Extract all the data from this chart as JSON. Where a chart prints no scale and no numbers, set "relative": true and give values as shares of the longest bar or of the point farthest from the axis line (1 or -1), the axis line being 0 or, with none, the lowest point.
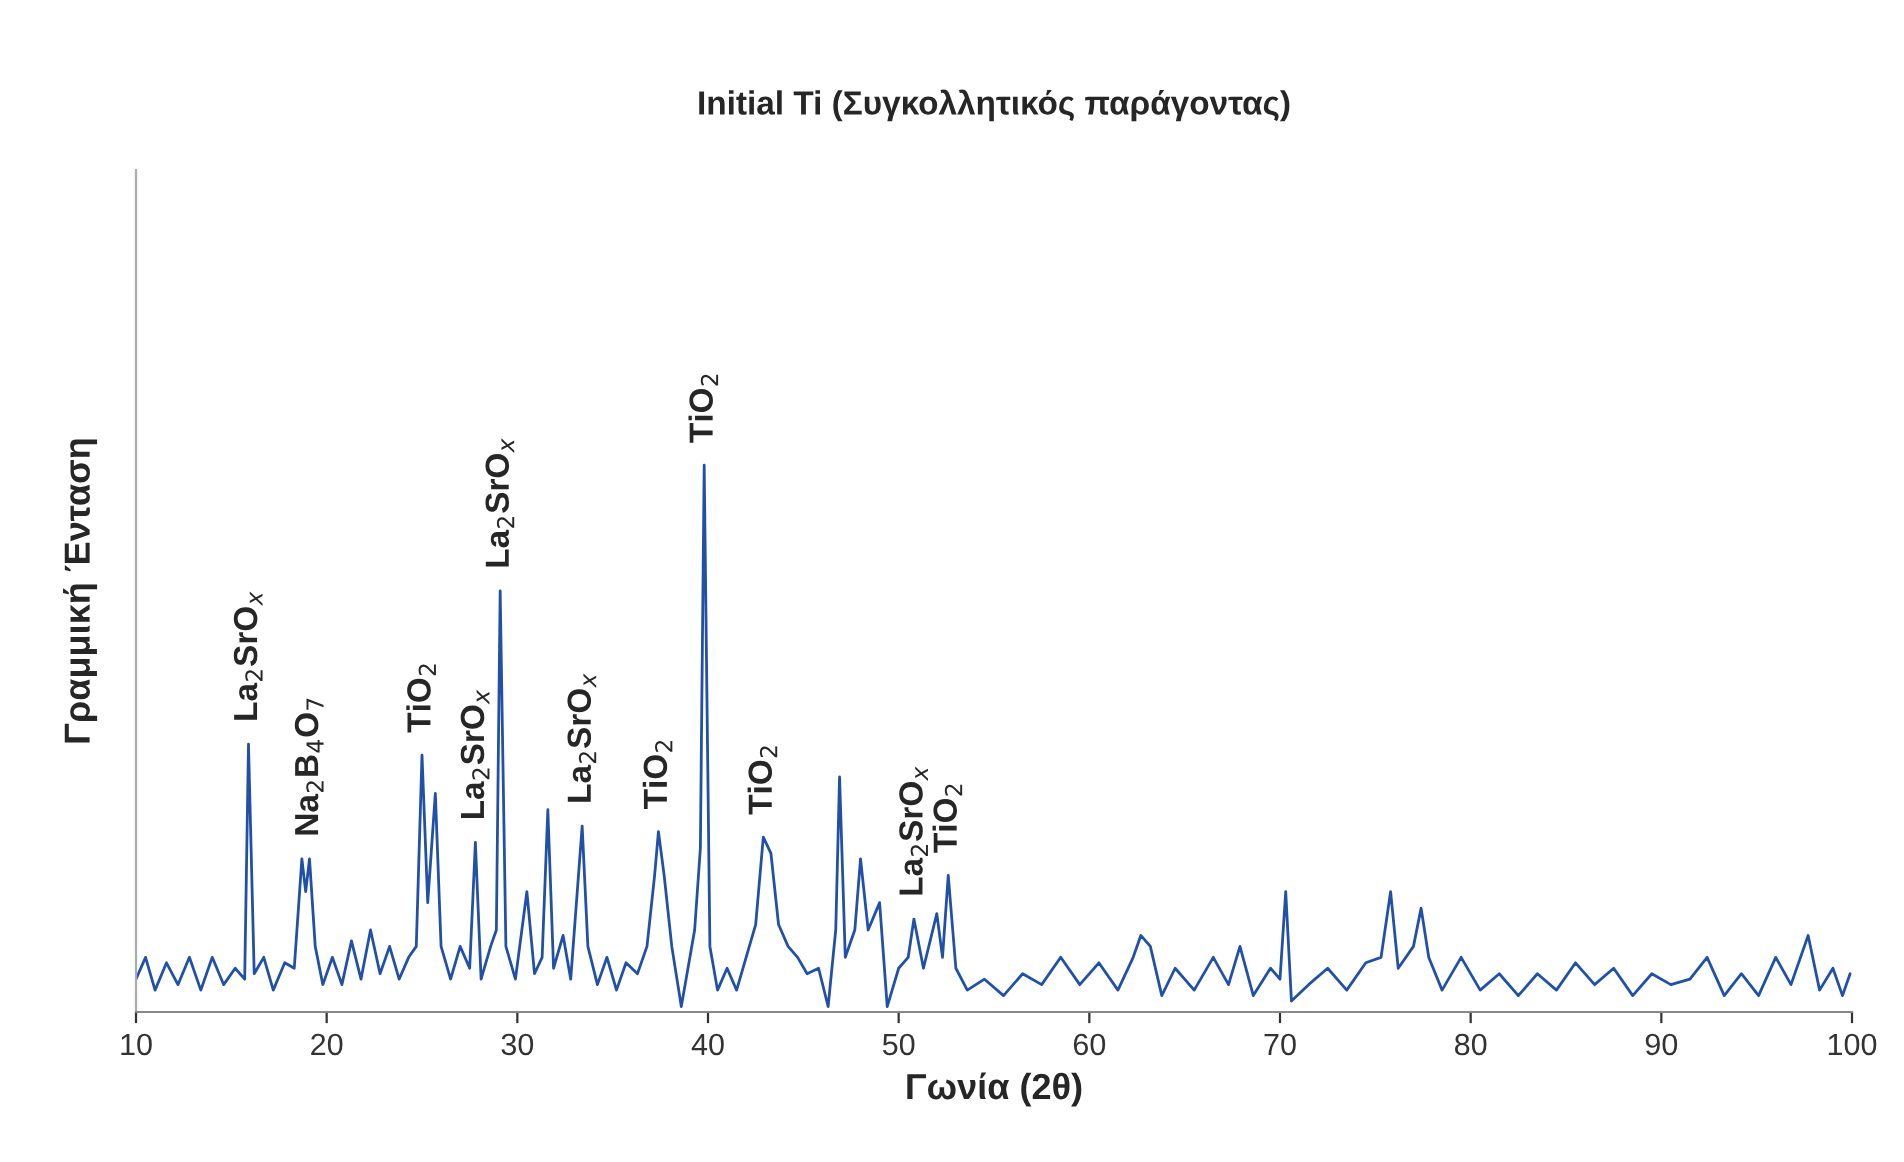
{
  "chart_data": {
    "type": "line",
    "title": "Initial Ti (Συγκολλητικός παράγοντας)",
    "xlabel": "Γωνία (2θ)",
    "ylabel": "Γραμμική Ένταση",
    "relative": true,
    "grid": false,
    "xlim": [
      10,
      100
    ],
    "xticks": [
      10,
      20,
      30,
      40,
      50,
      60,
      70,
      80,
      90,
      100
    ],
    "series": [
      {
        "color": "#2150a8",
        "x": [
          10,
          10.5,
          11,
          11.6,
          12.2,
          12.8,
          13.4,
          14,
          14.6,
          15.2,
          15.7,
          15.9,
          16.2,
          16.7,
          17.2,
          17.8,
          18.3,
          18.7,
          18.9,
          19.1,
          19.4,
          19.8,
          20.3,
          20.8,
          21.3,
          21.8,
          22.3,
          22.8,
          23.3,
          23.8,
          24.3,
          24.7,
          25.0,
          25.3,
          25.7,
          26.0,
          26.5,
          27.0,
          27.5,
          27.8,
          28.1,
          28.6,
          28.9,
          29.1,
          29.4,
          29.9,
          30.5,
          30.9,
          31.3,
          31.6,
          31.9,
          32.4,
          32.8,
          33.4,
          33.7,
          34.2,
          34.7,
          35.2,
          35.7,
          36.3,
          36.8,
          37.2,
          37.4,
          37.7,
          38.1,
          38.6,
          39.3,
          39.6,
          39.8,
          40.1,
          40.5,
          41.0,
          41.5,
          42.0,
          42.5,
          42.9,
          43.3,
          43.7,
          44.2,
          44.7,
          45.2,
          45.8,
          46.3,
          46.7,
          46.9,
          47.2,
          47.7,
          48.0,
          48.4,
          49.0,
          49.4,
          50.0,
          50.5,
          50.8,
          51.3,
          52.0,
          52.3,
          52.6,
          53.0,
          53.6,
          54.5,
          55.5,
          56.5,
          57.5,
          58.5,
          59.5,
          60.5,
          61.5,
          62.3,
          62.7,
          63.2,
          63.8,
          64.5,
          65.5,
          66.5,
          67.3,
          67.9,
          68.6,
          69.5,
          70.0,
          70.3,
          70.6,
          71.5,
          72.5,
          73.5,
          74.5,
          75.3,
          75.8,
          76.2,
          77.0,
          77.4,
          77.8,
          78.5,
          79.5,
          80.5,
          81.5,
          82.5,
          83.5,
          84.5,
          85.5,
          86.5,
          87.5,
          88.5,
          89.5,
          90.5,
          91.5,
          92.4,
          93.3,
          94.2,
          95.1,
          96.0,
          96.8,
          97.7,
          98.3,
          99.0,
          99.5,
          99.9
        ],
        "values": [
          0.06,
          0.1,
          0.04,
          0.09,
          0.05,
          0.1,
          0.04,
          0.1,
          0.05,
          0.08,
          0.06,
          0.49,
          0.07,
          0.1,
          0.04,
          0.09,
          0.08,
          0.28,
          0.22,
          0.28,
          0.12,
          0.05,
          0.1,
          0.05,
          0.13,
          0.06,
          0.15,
          0.07,
          0.12,
          0.06,
          0.1,
          0.12,
          0.47,
          0.2,
          0.4,
          0.12,
          0.06,
          0.12,
          0.08,
          0.31,
          0.06,
          0.12,
          0.15,
          0.77,
          0.12,
          0.06,
          0.22,
          0.07,
          0.1,
          0.37,
          0.08,
          0.14,
          0.06,
          0.34,
          0.12,
          0.05,
          0.1,
          0.04,
          0.09,
          0.07,
          0.12,
          0.25,
          0.33,
          0.25,
          0.12,
          0.01,
          0.15,
          0.3,
          1.0,
          0.12,
          0.04,
          0.08,
          0.04,
          0.1,
          0.16,
          0.32,
          0.29,
          0.16,
          0.12,
          0.1,
          0.07,
          0.08,
          0.01,
          0.15,
          0.43,
          0.1,
          0.15,
          0.28,
          0.15,
          0.2,
          0.01,
          0.08,
          0.1,
          0.17,
          0.08,
          0.18,
          0.1,
          0.25,
          0.08,
          0.04,
          0.06,
          0.03,
          0.07,
          0.05,
          0.1,
          0.05,
          0.09,
          0.04,
          0.1,
          0.14,
          0.12,
          0.03,
          0.08,
          0.04,
          0.1,
          0.05,
          0.12,
          0.03,
          0.08,
          0.06,
          0.22,
          0.02,
          0.05,
          0.08,
          0.04,
          0.09,
          0.1,
          0.22,
          0.08,
          0.12,
          0.19,
          0.1,
          0.04,
          0.1,
          0.04,
          0.07,
          0.03,
          0.07,
          0.04,
          0.09,
          0.05,
          0.08,
          0.03,
          0.07,
          0.05,
          0.06,
          0.1,
          0.03,
          0.07,
          0.03,
          0.1,
          0.05,
          0.14,
          0.04,
          0.08,
          0.03,
          0.07
        ]
      }
    ],
    "annotations": [
      {
        "text": "La$_{2}$SrO$_{x}$",
        "x": 15.9,
        "y": 0.49
      },
      {
        "text": "Na$_{2}$B$_{4}$O$_{7}$",
        "x": 19.1,
        "y": 0.28
      },
      {
        "text": "TiO$_{2}$",
        "x": 25.0,
        "y": 0.47
      },
      {
        "text": "La$_{2}$SrO$_{x}$",
        "x": 27.8,
        "y": 0.31
      },
      {
        "text": "La$_{2}$SrO$_{x}$",
        "x": 29.1,
        "y": 0.77
      },
      {
        "text": "La$_{2}$SrO$_{x}$",
        "x": 33.4,
        "y": 0.34
      },
      {
        "text": "TiO$_{2}$",
        "x": 37.4,
        "y": 0.33
      },
      {
        "text": "TiO$_{2}$",
        "x": 39.8,
        "y": 1.0
      },
      {
        "text": "TiO$_{2}$",
        "x": 42.9,
        "y": 0.32
      },
      {
        "text": "La$_{2}$SrO$_{x}$",
        "x": 50.8,
        "y": 0.17
      },
      {
        "text": "TiO$_{2}$",
        "x": 52.6,
        "y": 0.25
      }
    ]
  }
}
